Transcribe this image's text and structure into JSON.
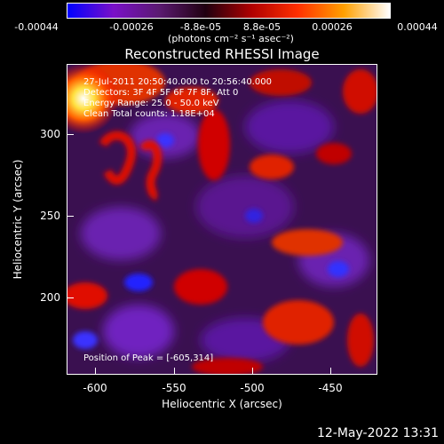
{
  "colorbar": {
    "ticks": [
      "-0.00044",
      "-0.00026",
      "-8.8e-05",
      "8.8e-05",
      "0.00026",
      "0.00044"
    ],
    "unit_label": "(photons cm⁻² s⁻¹ asec⁻²)",
    "colors": [
      "#0000ff",
      "#7a10c8",
      "#5a1a70",
      "#200010",
      "#b00000",
      "#ff3000",
      "#ffa000",
      "#ffffff"
    ]
  },
  "image": {
    "title": "Reconstructed RHESSI Image",
    "time_range": "27-Jul-2011 20:50:40.000 to 20:56:40.000",
    "detectors": "Detectors: 3F 4F 5F 6F 7F 8F, Att 0",
    "energy_range": "Energy Range: 25.0 - 50.0 keV",
    "clean_info": "Clean    Total counts: 1.18E+04",
    "peak_position": "Position of Peak = [-605,314]"
  },
  "axes": {
    "x_title": "Heliocentric X (arcsec)",
    "y_title": "Heliocentric Y (arcsec)",
    "x_ticks": [
      "-600",
      "-550",
      "-500",
      "-450"
    ],
    "y_ticks": [
      "300",
      "250",
      "200"
    ],
    "x_range": [
      -615,
      -425
    ],
    "y_range": [
      150,
      340
    ]
  },
  "footer": {
    "timestamp": "12-May-2022 13:31"
  }
}
